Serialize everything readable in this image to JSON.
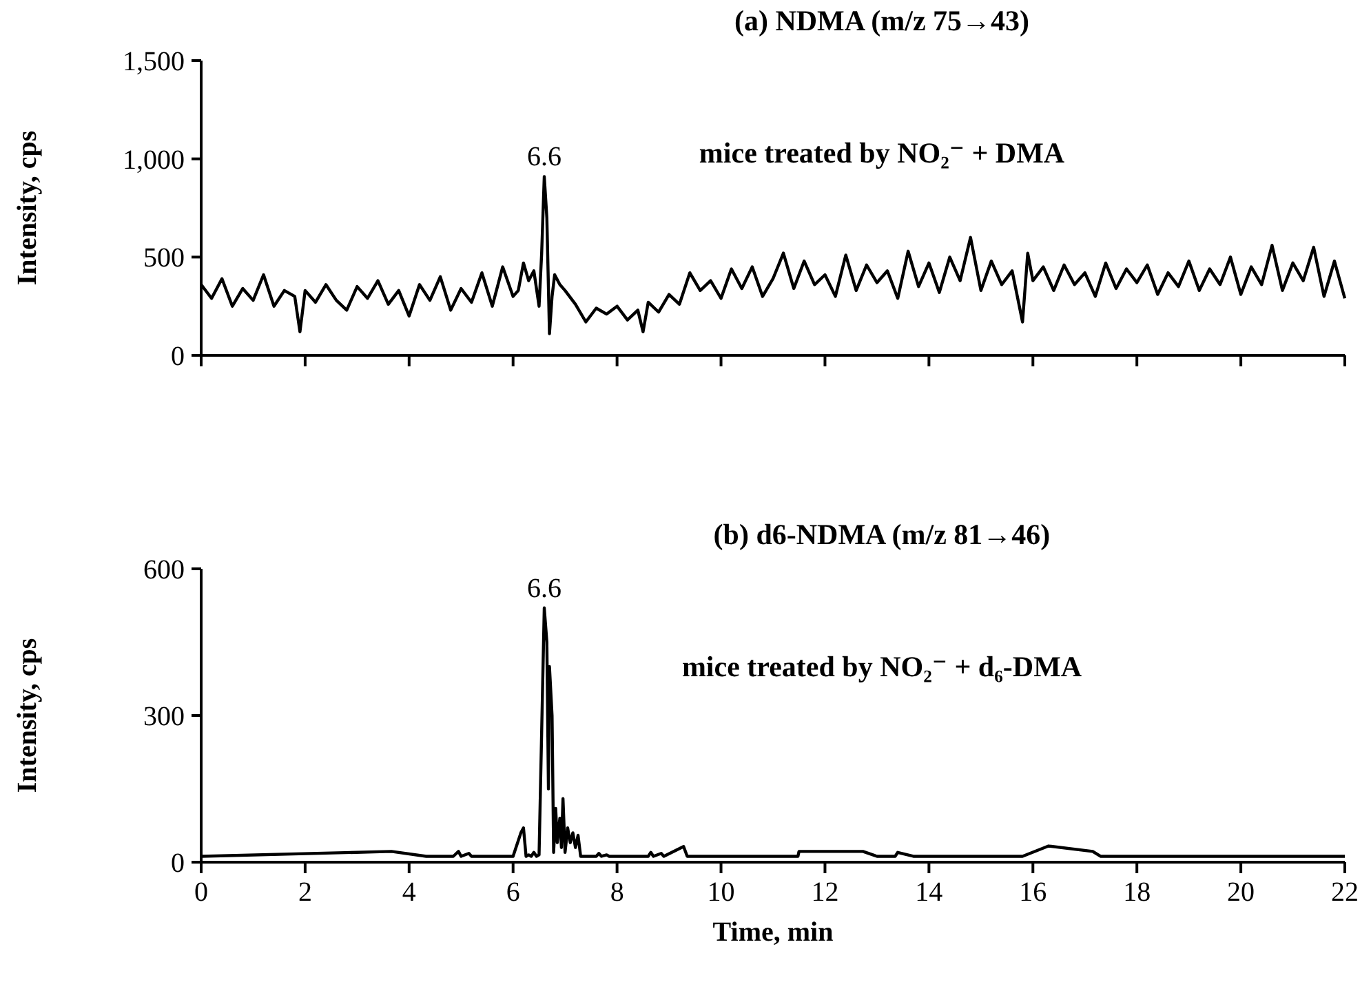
{
  "chart_data": [
    {
      "type": "line",
      "title": "(a) NDMA  (m/z 75→43)",
      "subtitle": "mice treated by NO₂⁻ + DMA",
      "ylabel": "Intensity, cps",
      "xlim": [
        0,
        22
      ],
      "xticks": [
        {
          "value": 0,
          "label": null
        },
        {
          "value": 2,
          "label": null
        },
        {
          "value": 4,
          "label": null
        },
        {
          "value": 6,
          "label": null
        },
        {
          "value": 8,
          "label": null
        },
        {
          "value": 10,
          "label": null
        },
        {
          "value": 12,
          "label": null
        },
        {
          "value": 14,
          "label": null
        },
        {
          "value": 16,
          "label": null
        },
        {
          "value": 18,
          "label": null
        },
        {
          "value": 20,
          "label": null
        },
        {
          "value": 22,
          "label": null
        }
      ],
      "ylim": [
        0,
        1500
      ],
      "yticks": [
        0,
        500,
        {
          "value": 1000,
          "label": "1,000"
        },
        {
          "value": 1500,
          "label": "1,500"
        }
      ],
      "tick_labels": "y",
      "annotations": [
        {
          "text": "6.6",
          "x": 6.6,
          "y": 910
        }
      ],
      "x": [
        0,
        0.2,
        0.4,
        0.6,
        0.8,
        1.0,
        1.2,
        1.4,
        1.6,
        1.8,
        1.9,
        2.0,
        2.2,
        2.4,
        2.6,
        2.8,
        3.0,
        3.2,
        3.4,
        3.6,
        3.8,
        4.0,
        4.2,
        4.4,
        4.6,
        4.8,
        5.0,
        5.2,
        5.4,
        5.6,
        5.8,
        6.0,
        6.1,
        6.2,
        6.3,
        6.4,
        6.5,
        6.55,
        6.6,
        6.65,
        6.7,
        6.75,
        6.8,
        6.9,
        7.0,
        7.2,
        7.4,
        7.6,
        7.8,
        8.0,
        8.2,
        8.4,
        8.5,
        8.6,
        8.8,
        9.0,
        9.2,
        9.4,
        9.6,
        9.8,
        10.0,
        10.2,
        10.4,
        10.6,
        10.8,
        11.0,
        11.2,
        11.4,
        11.6,
        11.8,
        12.0,
        12.2,
        12.4,
        12.6,
        12.8,
        13.0,
        13.2,
        13.4,
        13.6,
        13.8,
        14.0,
        14.2,
        14.4,
        14.6,
        14.8,
        15.0,
        15.2,
        15.4,
        15.6,
        15.8,
        15.9,
        16.0,
        16.2,
        16.4,
        16.6,
        16.8,
        17.0,
        17.2,
        17.4,
        17.6,
        17.8,
        18.0,
        18.2,
        18.4,
        18.6,
        18.8,
        19.0,
        19.2,
        19.4,
        19.6,
        19.8,
        20.0,
        20.2,
        20.4,
        20.6,
        20.8,
        21.0,
        21.2,
        21.4,
        21.6,
        21.8,
        22.0
      ],
      "series": [
        {
          "color": "#000000",
          "values": [
            360,
            290,
            390,
            250,
            340,
            280,
            410,
            250,
            330,
            300,
            120,
            330,
            270,
            360,
            280,
            230,
            350,
            290,
            380,
            260,
            330,
            200,
            360,
            280,
            400,
            230,
            340,
            270,
            420,
            250,
            450,
            300,
            330,
            470,
            380,
            430,
            250,
            520,
            910,
            700,
            110,
            300,
            410,
            360,
            330,
            260,
            170,
            240,
            210,
            250,
            180,
            230,
            120,
            270,
            220,
            310,
            260,
            420,
            330,
            380,
            290,
            440,
            340,
            450,
            300,
            390,
            520,
            340,
            480,
            360,
            410,
            300,
            510,
            330,
            460,
            370,
            430,
            290,
            530,
            350,
            470,
            320,
            500,
            380,
            600,
            330,
            480,
            360,
            430,
            170,
            520,
            380,
            450,
            330,
            460,
            360,
            420,
            300,
            470,
            340,
            440,
            370,
            460,
            310,
            420,
            350,
            480,
            330,
            440,
            360,
            500,
            310,
            450,
            360,
            560,
            330,
            470,
            380,
            550,
            300,
            480,
            290
          ]
        }
      ]
    },
    {
      "type": "line",
      "title": "(b) d6-NDMA  (m/z 81→46)",
      "subtitle": "mice treated by NO₂⁻ + d₆-DMA",
      "xlabel": "Time, min",
      "ylabel": "Intensity, cps",
      "xlim": [
        0,
        22
      ],
      "xticks": [
        0,
        2,
        4,
        6,
        8,
        10,
        12,
        14,
        16,
        18,
        20,
        22
      ],
      "ylim": [
        0,
        600
      ],
      "yticks": [
        0,
        300,
        600
      ],
      "annotations": [
        {
          "text": "6.6",
          "x": 6.6,
          "y": 520
        }
      ],
      "x": [
        0,
        3.66,
        4.33,
        4.85,
        4.95,
        5.0,
        5.15,
        5.2,
        6.0,
        6.15,
        6.2,
        6.25,
        6.3,
        6.35,
        6.4,
        6.45,
        6.5,
        6.6,
        6.65,
        6.68,
        6.7,
        6.75,
        6.78,
        6.82,
        6.85,
        6.9,
        6.93,
        6.96,
        7.0,
        7.05,
        7.1,
        7.15,
        7.2,
        7.25,
        7.3,
        7.6,
        7.65,
        7.7,
        7.8,
        7.85,
        8.6,
        8.65,
        8.7,
        8.85,
        8.9,
        9.28,
        9.35,
        11.48,
        11.5,
        12.73,
        13.0,
        13.35,
        13.4,
        13.7,
        15.8,
        16.3,
        17.15,
        17.3,
        22
      ],
      "series": [
        {
          "color": "#000000",
          "values": [
            12,
            22,
            12,
            12,
            22,
            12,
            18,
            12,
            12,
            60,
            70,
            12,
            15,
            12,
            20,
            12,
            15,
            520,
            450,
            150,
            400,
            300,
            20,
            110,
            40,
            90,
            30,
            130,
            20,
            70,
            40,
            60,
            30,
            55,
            12,
            12,
            18,
            12,
            15,
            12,
            12,
            20,
            12,
            18,
            12,
            32,
            12,
            12,
            22,
            22,
            12,
            12,
            20,
            12,
            12,
            33,
            22,
            12,
            12
          ]
        }
      ]
    }
  ]
}
